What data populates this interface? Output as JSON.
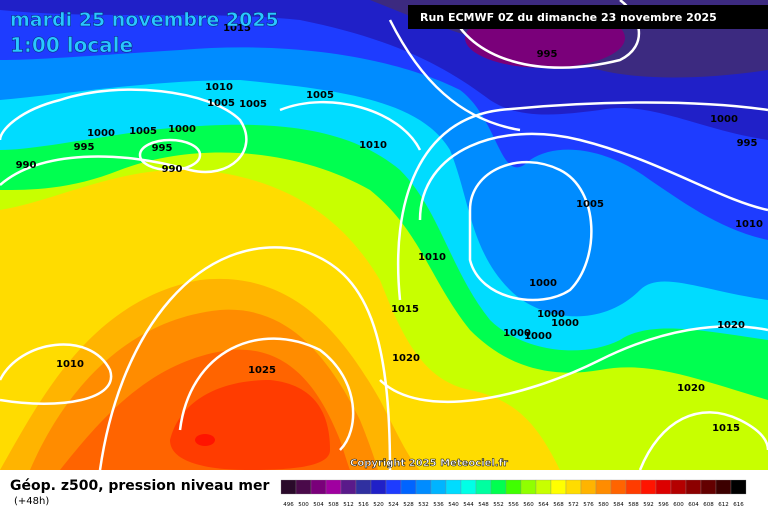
{
  "header": {
    "title": "mardi 25 novembre 2025",
    "subtitle": "1:00 locale",
    "run": "Run ECMWF 0Z du dimanche 23 novembre 2025"
  },
  "copyright": "Copyright 2025 Meteociel.fr",
  "footer": {
    "label": "Géop. z500, pression niveau mer",
    "lead": "(+48h)"
  },
  "isobar_labels": [
    1015,
    995,
    1010,
    1005,
    1005,
    1005,
    1000,
    1005,
    1000,
    995,
    995,
    990,
    990,
    1010,
    1000,
    995,
    1005,
    1010,
    1010,
    1000,
    1015,
    1000,
    1000,
    1000,
    1000,
    1020,
    1010,
    1025,
    1020,
    1020,
    1015
  ],
  "scale": {
    "ticks": [
      496,
      500,
      504,
      508,
      512,
      516,
      520,
      524,
      528,
      532,
      536,
      540,
      544,
      548,
      552,
      556,
      560,
      564,
      568,
      572,
      576,
      580,
      584,
      588,
      592,
      596,
      600,
      604,
      608,
      612,
      616
    ],
    "colors": [
      "#2a0a2a",
      "#4a0a4a",
      "#7a007a",
      "#a000a0",
      "#5a1a8a",
      "#3030a0",
      "#2020c8",
      "#1e3cff",
      "#0064ff",
      "#008cff",
      "#00b4ff",
      "#00dcff",
      "#00ffe6",
      "#00ffa0",
      "#00ff50",
      "#40ff00",
      "#90ff00",
      "#c8ff00",
      "#ffff00",
      "#ffdc00",
      "#ffb400",
      "#ff8c00",
      "#ff6400",
      "#ff3c00",
      "#ff1400",
      "#dc0000",
      "#b40000",
      "#8c0000",
      "#640000",
      "#3c0000",
      "#000000"
    ]
  }
}
